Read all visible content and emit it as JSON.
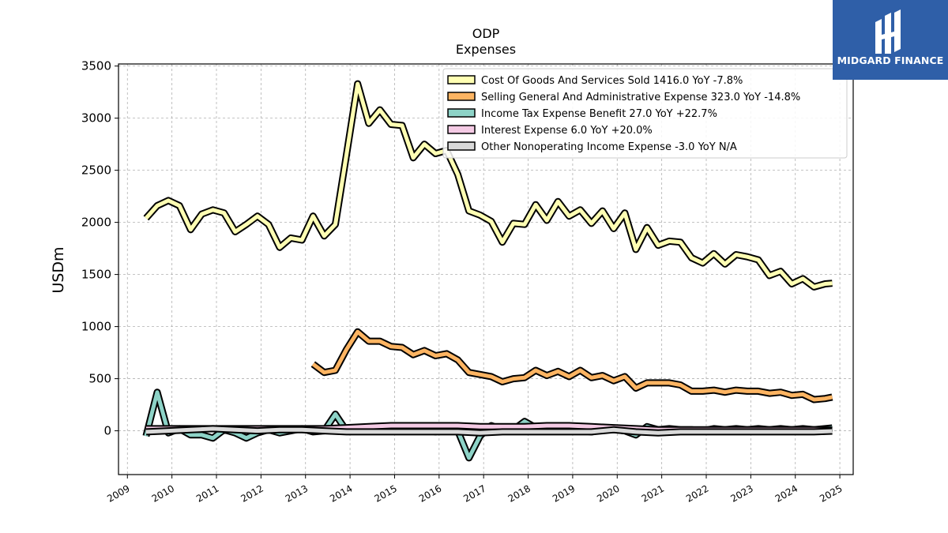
{
  "brand": {
    "name": "MIDGARD FINANCE",
    "color": "#2f5fa8"
  },
  "chart_data": {
    "type": "line",
    "title": "ODP",
    "subtitle": "Expenses",
    "ylabel": "USDm",
    "xlabel": "",
    "ylim": [
      -420,
      3520
    ],
    "xlim": [
      2008.8,
      2025.3
    ],
    "grid": true,
    "legend_position": "top-right",
    "yticks": [
      0,
      500,
      1000,
      1500,
      2000,
      2500,
      3000,
      3500
    ],
    "xticks": [
      "2009",
      "2010",
      "2011",
      "2012",
      "2013",
      "2014",
      "2015",
      "2016",
      "2017",
      "2018",
      "2019",
      "2020",
      "2021",
      "2022",
      "2023",
      "2024",
      "2025"
    ],
    "series": [
      {
        "name": "Cost Of Goods And Services Sold",
        "legend": "Cost Of Goods And Services Sold  1416.0 YoY -7.8%",
        "color": "#ffffb3",
        "x": [
          2009.42,
          2009.67,
          2009.92,
          2010.17,
          2010.42,
          2010.67,
          2010.92,
          2011.17,
          2011.42,
          2011.67,
          2011.92,
          2012.17,
          2012.42,
          2012.67,
          2012.92,
          2013.17,
          2013.42,
          2013.67,
          2013.92,
          2014.17,
          2014.42,
          2014.67,
          2014.92,
          2015.17,
          2015.42,
          2015.67,
          2015.92,
          2016.17,
          2016.42,
          2016.67,
          2016.92,
          2017.17,
          2017.42,
          2017.67,
          2017.92,
          2018.17,
          2018.42,
          2018.67,
          2018.92,
          2019.17,
          2019.42,
          2019.67,
          2019.92,
          2020.17,
          2020.42,
          2020.67,
          2020.92,
          2021.17,
          2021.42,
          2021.67,
          2021.92,
          2022.17,
          2022.42,
          2022.67,
          2022.92,
          2023.17,
          2023.42,
          2023.67,
          2023.92,
          2024.17,
          2024.42,
          2024.67,
          2024.83
        ],
        "values": [
          2040,
          2160,
          2210,
          2160,
          1930,
          2080,
          2120,
          2090,
          1910,
          1980,
          2060,
          1980,
          1760,
          1850,
          1830,
          2060,
          1870,
          1980,
          2650,
          3330,
          2950,
          3080,
          2940,
          2930,
          2620,
          2750,
          2660,
          2690,
          2460,
          2110,
          2070,
          2010,
          1810,
          1990,
          1980,
          2170,
          2020,
          2200,
          2060,
          2120,
          1990,
          2110,
          1940,
          2090,
          1740,
          1950,
          1780,
          1820,
          1810,
          1660,
          1610,
          1700,
          1600,
          1690,
          1670,
          1640,
          1490,
          1530,
          1410,
          1460,
          1380,
          1410,
          1416
        ]
      },
      {
        "name": "Selling General And Administrative Expense",
        "legend": "Selling General And Administrative Expense  323.0 YoY -14.8%",
        "color": "#fdb462",
        "x": [
          2013.17,
          2013.42,
          2013.67,
          2013.92,
          2014.17,
          2014.42,
          2014.67,
          2014.92,
          2015.17,
          2015.42,
          2015.67,
          2015.92,
          2016.17,
          2016.42,
          2016.67,
          2016.92,
          2017.17,
          2017.42,
          2017.67,
          2017.92,
          2018.17,
          2018.42,
          2018.67,
          2018.92,
          2019.17,
          2019.42,
          2019.67,
          2019.92,
          2020.17,
          2020.42,
          2020.67,
          2020.92,
          2021.17,
          2021.42,
          2021.67,
          2021.92,
          2022.17,
          2022.42,
          2022.67,
          2022.92,
          2023.17,
          2023.42,
          2023.67,
          2023.92,
          2024.17,
          2024.42,
          2024.67,
          2024.83
        ],
        "values": [
          640,
          560,
          580,
          780,
          950,
          860,
          860,
          810,
          800,
          730,
          770,
          720,
          740,
          680,
          560,
          540,
          520,
          470,
          500,
          510,
          580,
          530,
          570,
          520,
          580,
          510,
          530,
          480,
          520,
          410,
          460,
          460,
          460,
          440,
          380,
          380,
          390,
          370,
          390,
          380,
          380,
          360,
          370,
          340,
          350,
          300,
          310,
          323
        ]
      },
      {
        "name": "Income Tax Expense Benefit",
        "legend": "Income Tax Expense Benefit  27.0 YoY +22.7%",
        "color": "#8dd3c7",
        "x": [
          2009.42,
          2009.67,
          2009.92,
          2010.17,
          2010.42,
          2010.67,
          2010.92,
          2011.17,
          2011.42,
          2011.67,
          2011.92,
          2012.17,
          2012.42,
          2012.67,
          2012.92,
          2013.17,
          2013.42,
          2013.67,
          2013.92,
          2014.17,
          2014.42,
          2014.67,
          2014.92,
          2015.17,
          2015.42,
          2015.67,
          2015.92,
          2016.17,
          2016.42,
          2016.67,
          2016.92,
          2017.17,
          2017.42,
          2017.67,
          2017.92,
          2018.17,
          2018.42,
          2018.67,
          2018.92,
          2019.17,
          2019.42,
          2019.67,
          2019.92,
          2020.17,
          2020.42,
          2020.67,
          2020.92,
          2021.17,
          2021.42,
          2021.67,
          2021.92,
          2022.17,
          2022.42,
          2022.67,
          2022.92,
          2023.17,
          2023.42,
          2023.67,
          2023.92,
          2024.17,
          2024.42,
          2024.67,
          2024.83
        ],
        "values": [
          -50,
          370,
          -20,
          20,
          -40,
          -40,
          -70,
          10,
          -20,
          -70,
          -20,
          10,
          -20,
          0,
          20,
          -10,
          0,
          160,
          0,
          20,
          10,
          0,
          20,
          20,
          0,
          20,
          -10,
          20,
          0,
          -260,
          -50,
          50,
          10,
          10,
          90,
          30,
          40,
          20,
          10,
          0,
          -10,
          10,
          10,
          0,
          -40,
          40,
          10,
          20,
          10,
          10,
          0,
          20,
          10,
          20,
          10,
          20,
          10,
          20,
          10,
          20,
          10,
          20,
          27
        ]
      },
      {
        "name": "Interest Expense",
        "legend": "Interest Expense  6.0 YoY +20.0%",
        "color": "#f4cae4",
        "x": [
          2009.42,
          2009.92,
          2010.42,
          2010.92,
          2011.42,
          2011.92,
          2012.42,
          2012.92,
          2013.42,
          2013.92,
          2014.42,
          2014.92,
          2015.42,
          2015.92,
          2016.42,
          2016.92,
          2017.42,
          2017.92,
          2018.42,
          2018.92,
          2019.42,
          2019.92,
          2020.42,
          2020.92,
          2021.42,
          2021.92,
          2022.42,
          2022.92,
          2023.42,
          2023.92,
          2024.42,
          2024.83
        ],
        "values": [
          20,
          20,
          20,
          20,
          20,
          20,
          20,
          20,
          20,
          30,
          40,
          50,
          50,
          50,
          50,
          40,
          40,
          40,
          50,
          50,
          40,
          30,
          20,
          10,
          10,
          10,
          10,
          10,
          10,
          10,
          10,
          6
        ]
      },
      {
        "name": "Other Nonoperating Income Expense",
        "legend": "Other Nonoperating Income Expense  -3.0 YoY N/A",
        "color": "#d9d9d9",
        "x": [
          2009.42,
          2009.92,
          2010.42,
          2010.92,
          2011.42,
          2011.92,
          2012.42,
          2012.92,
          2013.42,
          2013.92,
          2014.42,
          2014.92,
          2015.42,
          2015.92,
          2016.42,
          2016.92,
          2017.42,
          2017.92,
          2018.42,
          2018.92,
          2019.42,
          2019.92,
          2020.42,
          2020.92,
          2021.42,
          2021.92,
          2022.42,
          2022.92,
          2023.42,
          2023.92,
          2024.42,
          2024.83
        ],
        "values": [
          -10,
          0,
          10,
          20,
          10,
          0,
          10,
          10,
          0,
          -10,
          -10,
          -10,
          -10,
          -10,
          -10,
          -20,
          -10,
          -10,
          -10,
          -10,
          -10,
          10,
          -10,
          -20,
          -10,
          -10,
          -10,
          -10,
          -10,
          -10,
          -10,
          -3
        ]
      }
    ]
  }
}
